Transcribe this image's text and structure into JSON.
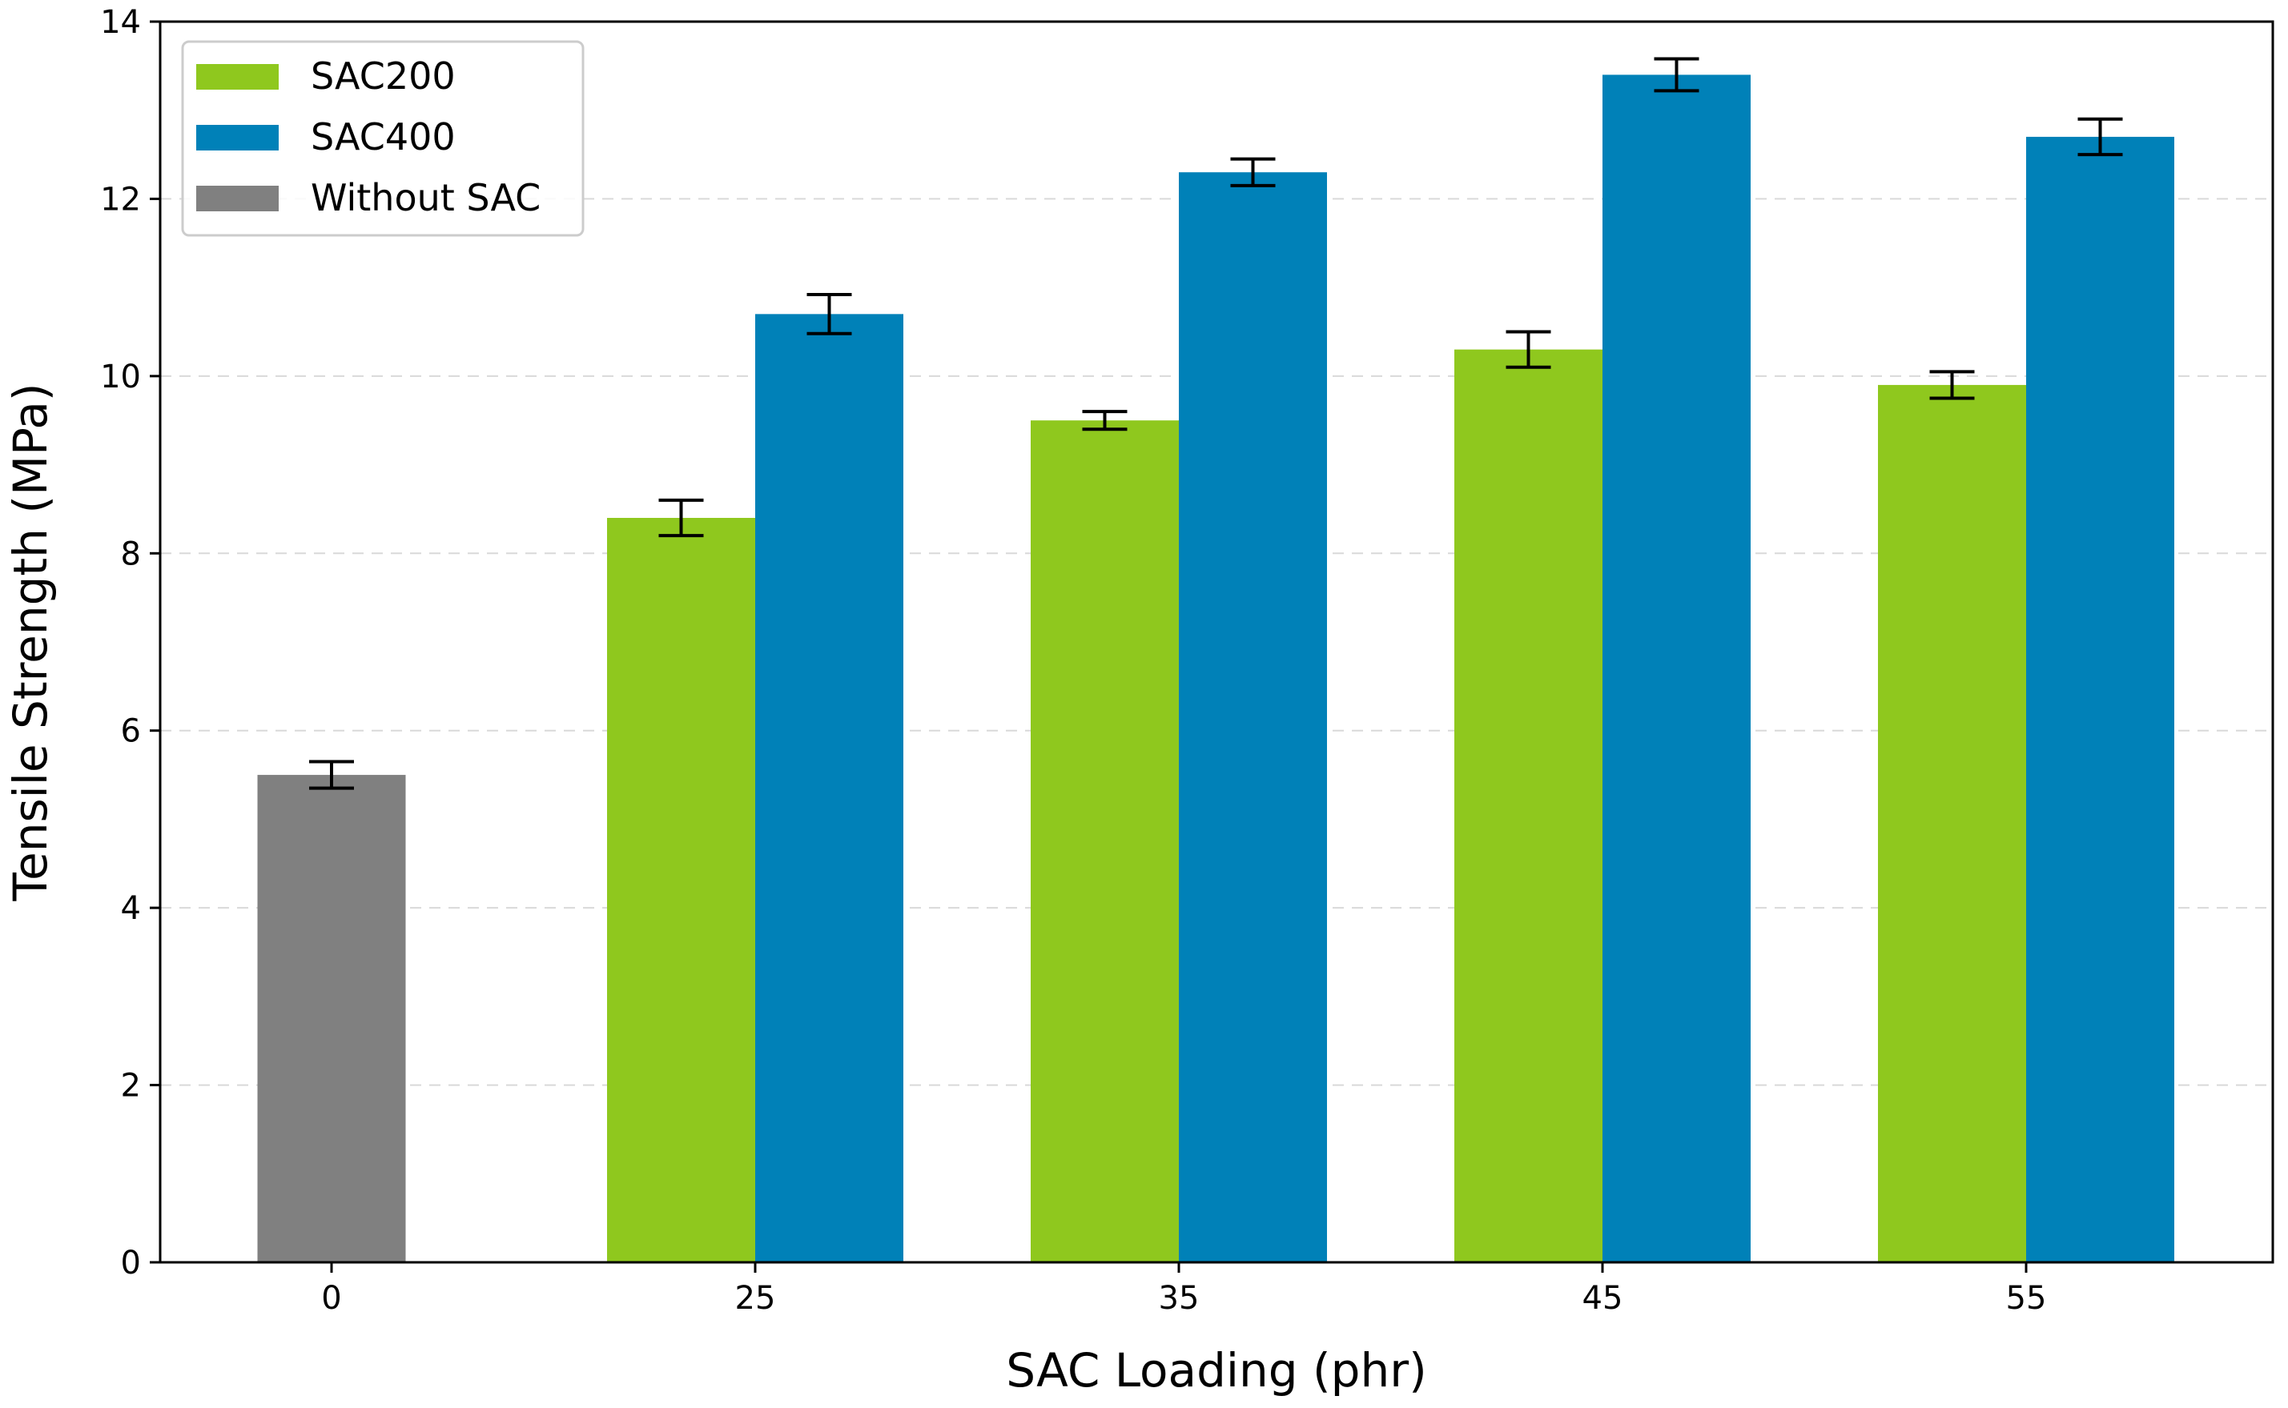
{
  "chart_data": {
    "type": "bar",
    "title": "",
    "xlabel": "SAC Loading (phr)",
    "ylabel": "Tensile Strength (MPa)",
    "categories": [
      "0",
      "25",
      "35",
      "45",
      "55"
    ],
    "ylim": [
      0,
      14
    ],
    "yticks": [
      0,
      2,
      4,
      6,
      8,
      10,
      12,
      14
    ],
    "grid": "y-dashed",
    "legend_position": "top-left",
    "series": [
      {
        "name": "SAC200",
        "color": "#8fc81e",
        "values": [
          null,
          8.4,
          9.5,
          10.3,
          9.9
        ],
        "errors": [
          null,
          0.2,
          0.1,
          0.2,
          0.15
        ]
      },
      {
        "name": "SAC400",
        "color": "#0081b8",
        "values": [
          null,
          10.7,
          12.3,
          13.4,
          12.7
        ],
        "errors": [
          null,
          0.22,
          0.15,
          0.18,
          0.2
        ]
      },
      {
        "name": "Without SAC",
        "color": "#808080",
        "values": [
          5.5,
          null,
          null,
          null,
          null
        ],
        "errors": [
          0.15,
          null,
          null,
          null,
          null
        ]
      }
    ]
  }
}
